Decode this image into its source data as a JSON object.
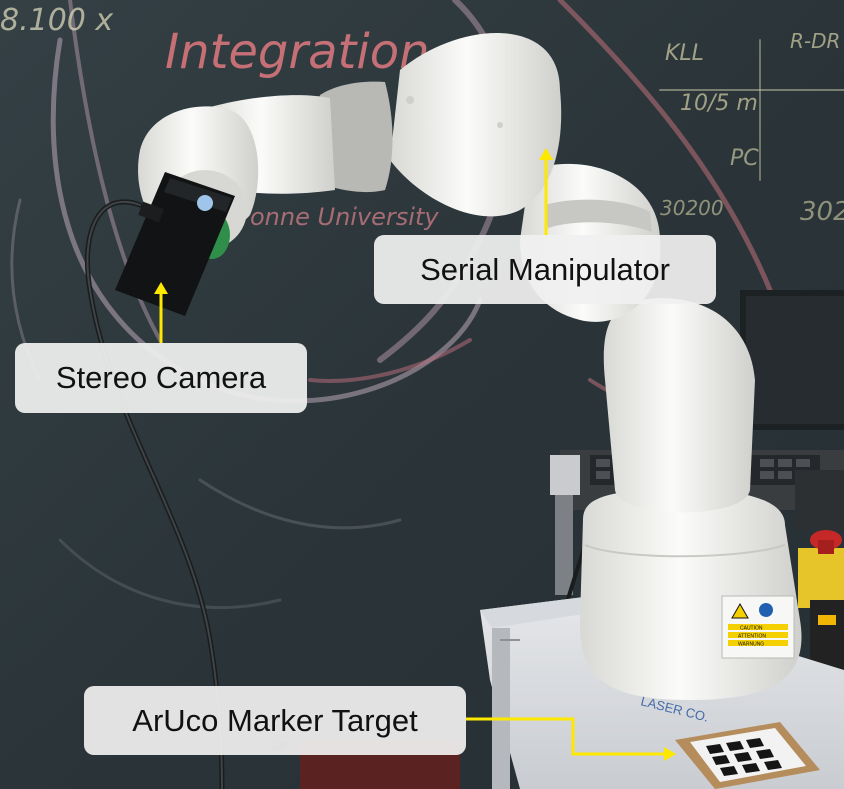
{
  "colors": {
    "arrow": "#ffe800",
    "chalkboard": "#2e393d",
    "robot": "#f1f1ef",
    "robot_joint": "#b8b8b4",
    "callout_bg": "#f0f0f0"
  },
  "labels": {
    "stereo_camera": "Stereo Camera",
    "serial_manipulator": "Serial Manipulator",
    "aruco_target": "ArUco Marker Target"
  },
  "chalk_text": {
    "top_left": "8.100 x",
    "title": "Integration",
    "university": "onne University",
    "right_1": "KLL",
    "right_2": "R-DR",
    "right_3": "10/5 m",
    "right_4": "PC",
    "right_5": "30200",
    "right_6": "302"
  },
  "base_sticker": {
    "caution": "CAUTION",
    "attention": "ATTENTION",
    "warning": "WARNUNG"
  },
  "table_sticker": "LASER CO."
}
